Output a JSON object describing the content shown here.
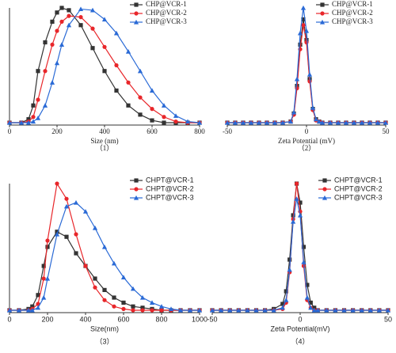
{
  "chart_data": [
    {
      "type": "line",
      "font": "serif",
      "xlabel": "Size (nm)",
      "caption": "（1）",
      "xlim": [
        0,
        800
      ],
      "ylim": [
        0,
        100
      ],
      "xticks": [
        0,
        200,
        400,
        600,
        800
      ],
      "legend": "upper right",
      "x": [
        0,
        50,
        80,
        100,
        120,
        150,
        180,
        200,
        220,
        250,
        300,
        350,
        400,
        450,
        500,
        550,
        600,
        650,
        700,
        750,
        800
      ],
      "series": [
        {
          "name": "CHP@VCR-1",
          "color": "#333333",
          "marker": "square",
          "values": [
            0,
            0,
            3,
            15,
            45,
            70,
            88,
            96,
            100,
            98,
            85,
            65,
            45,
            28,
            15,
            7,
            2,
            0,
            0,
            0,
            0
          ]
        },
        {
          "name": "CHP@VCR-2",
          "color": "#e8262a",
          "marker": "circle",
          "values": [
            0,
            0,
            1,
            5,
            20,
            45,
            68,
            80,
            88,
            93,
            92,
            82,
            66,
            50,
            35,
            22,
            12,
            5,
            1,
            0,
            0
          ]
        },
        {
          "name": "CHP@VCR-3",
          "color": "#2a6ad6",
          "marker": "triangle",
          "values": [
            0,
            0,
            0,
            1,
            4,
            15,
            35,
            52,
            68,
            85,
            99,
            98,
            90,
            78,
            62,
            45,
            28,
            15,
            6,
            1,
            0
          ]
        }
      ]
    },
    {
      "type": "line",
      "font": "serif",
      "xlabel": "Zeta Potential (mV)",
      "caption": "（2）",
      "xlim": [
        -50,
        50
      ],
      "ylim": [
        0,
        100
      ],
      "xticks": [
        -50,
        0,
        50
      ],
      "legend": "upper right",
      "x": [
        -50,
        -45,
        -40,
        -35,
        -30,
        -25,
        -20,
        -15,
        -10,
        -8,
        -6,
        -4,
        -2,
        0,
        2,
        4,
        6,
        8,
        10,
        15,
        20,
        25,
        30,
        35,
        40,
        45,
        50
      ],
      "series": [
        {
          "name": "CHP@VCR-1",
          "color": "#333333",
          "marker": "square",
          "values": [
            0,
            0,
            0,
            0,
            0,
            0,
            0,
            0,
            1,
            8,
            32,
            68,
            90,
            72,
            38,
            12,
            3,
            1,
            0,
            0,
            0,
            0,
            0,
            0,
            0,
            0,
            0
          ]
        },
        {
          "name": "CHP@VCR-2",
          "color": "#e8262a",
          "marker": "circle",
          "values": [
            0,
            0,
            0,
            0,
            0,
            0,
            0,
            0,
            1,
            7,
            30,
            64,
            85,
            70,
            36,
            11,
            2,
            1,
            0,
            0,
            0,
            0,
            0,
            0,
            0,
            0,
            0
          ]
        },
        {
          "name": "CHP@VCR-3",
          "color": "#2a6ad6",
          "marker": "triangle",
          "values": [
            0,
            0,
            0,
            0,
            0,
            0,
            0,
            0,
            1,
            9,
            38,
            78,
            100,
            80,
            42,
            13,
            3,
            1,
            0,
            0,
            0,
            0,
            0,
            0,
            0,
            0,
            0
          ]
        }
      ]
    },
    {
      "type": "line",
      "font": "sans",
      "xlabel": "Size(nm)",
      "caption": "（3）",
      "xlim": [
        0,
        1000
      ],
      "ylim": [
        0,
        100
      ],
      "xticks": [
        0,
        200,
        400,
        600,
        800,
        1000
      ],
      "legend": "upper right",
      "x": [
        0,
        50,
        100,
        120,
        150,
        180,
        200,
        250,
        300,
        350,
        400,
        450,
        500,
        550,
        600,
        650,
        700,
        750,
        800,
        850,
        900,
        950,
        1000
      ],
      "series": [
        {
          "name": "CHPT@VCR-1",
          "color": "#333333",
          "marker": "square",
          "values": [
            0,
            0,
            1,
            3,
            12,
            35,
            50,
            62,
            58,
            45,
            35,
            25,
            16,
            10,
            6,
            3,
            2,
            1,
            0,
            0,
            0,
            0,
            0
          ]
        },
        {
          "name": "CHPT@VCR-2",
          "color": "#e8262a",
          "marker": "circle",
          "values": [
            0,
            0,
            0,
            1,
            5,
            25,
            55,
            100,
            88,
            60,
            35,
            18,
            8,
            3,
            1,
            0,
            0,
            0,
            0,
            0,
            0,
            0,
            0
          ]
        },
        {
          "name": "CHPT@VCR-3",
          "color": "#2a6ad6",
          "marker": "triangle",
          "values": [
            0,
            0,
            0,
            0,
            2,
            10,
            25,
            60,
            82,
            85,
            78,
            65,
            50,
            37,
            26,
            17,
            10,
            6,
            3,
            1,
            0,
            0,
            0
          ]
        }
      ]
    },
    {
      "type": "line",
      "font": "sans",
      "xlabel": "Zeta Potential(mV)",
      "caption": "（4）",
      "xlim": [
        -50,
        50
      ],
      "ylim": [
        0,
        100
      ],
      "xticks": [
        -50,
        0,
        50
      ],
      "legend": "upper right",
      "x": [
        -50,
        -45,
        -40,
        -35,
        -30,
        -25,
        -20,
        -15,
        -10,
        -8,
        -6,
        -4,
        -2,
        0,
        2,
        4,
        6,
        8,
        10,
        15,
        20,
        25,
        30,
        35,
        40,
        45,
        50
      ],
      "series": [
        {
          "name": "CHPT@VCR-1",
          "color": "#333333",
          "marker": "square",
          "values": [
            0,
            0,
            0,
            0,
            0,
            0,
            0,
            1,
            5,
            15,
            40,
            75,
            100,
            85,
            50,
            20,
            6,
            2,
            0,
            0,
            0,
            0,
            0,
            0,
            0,
            0,
            0
          ]
        },
        {
          "name": "CHPT@VCR-2",
          "color": "#e8262a",
          "marker": "circle",
          "values": [
            0,
            0,
            0,
            0,
            0,
            0,
            0,
            0,
            1,
            6,
            30,
            72,
            100,
            78,
            35,
            8,
            2,
            0,
            0,
            0,
            0,
            0,
            0,
            0,
            0,
            0,
            0
          ]
        },
        {
          "name": "CHPT@VCR-3",
          "color": "#2a6ad6",
          "marker": "triangle",
          "values": [
            0,
            0,
            0,
            0,
            0,
            0,
            0,
            0,
            2,
            8,
            32,
            70,
            88,
            75,
            38,
            10,
            2,
            0,
            0,
            0,
            0,
            0,
            0,
            0,
            0,
            0,
            0
          ]
        }
      ]
    }
  ]
}
